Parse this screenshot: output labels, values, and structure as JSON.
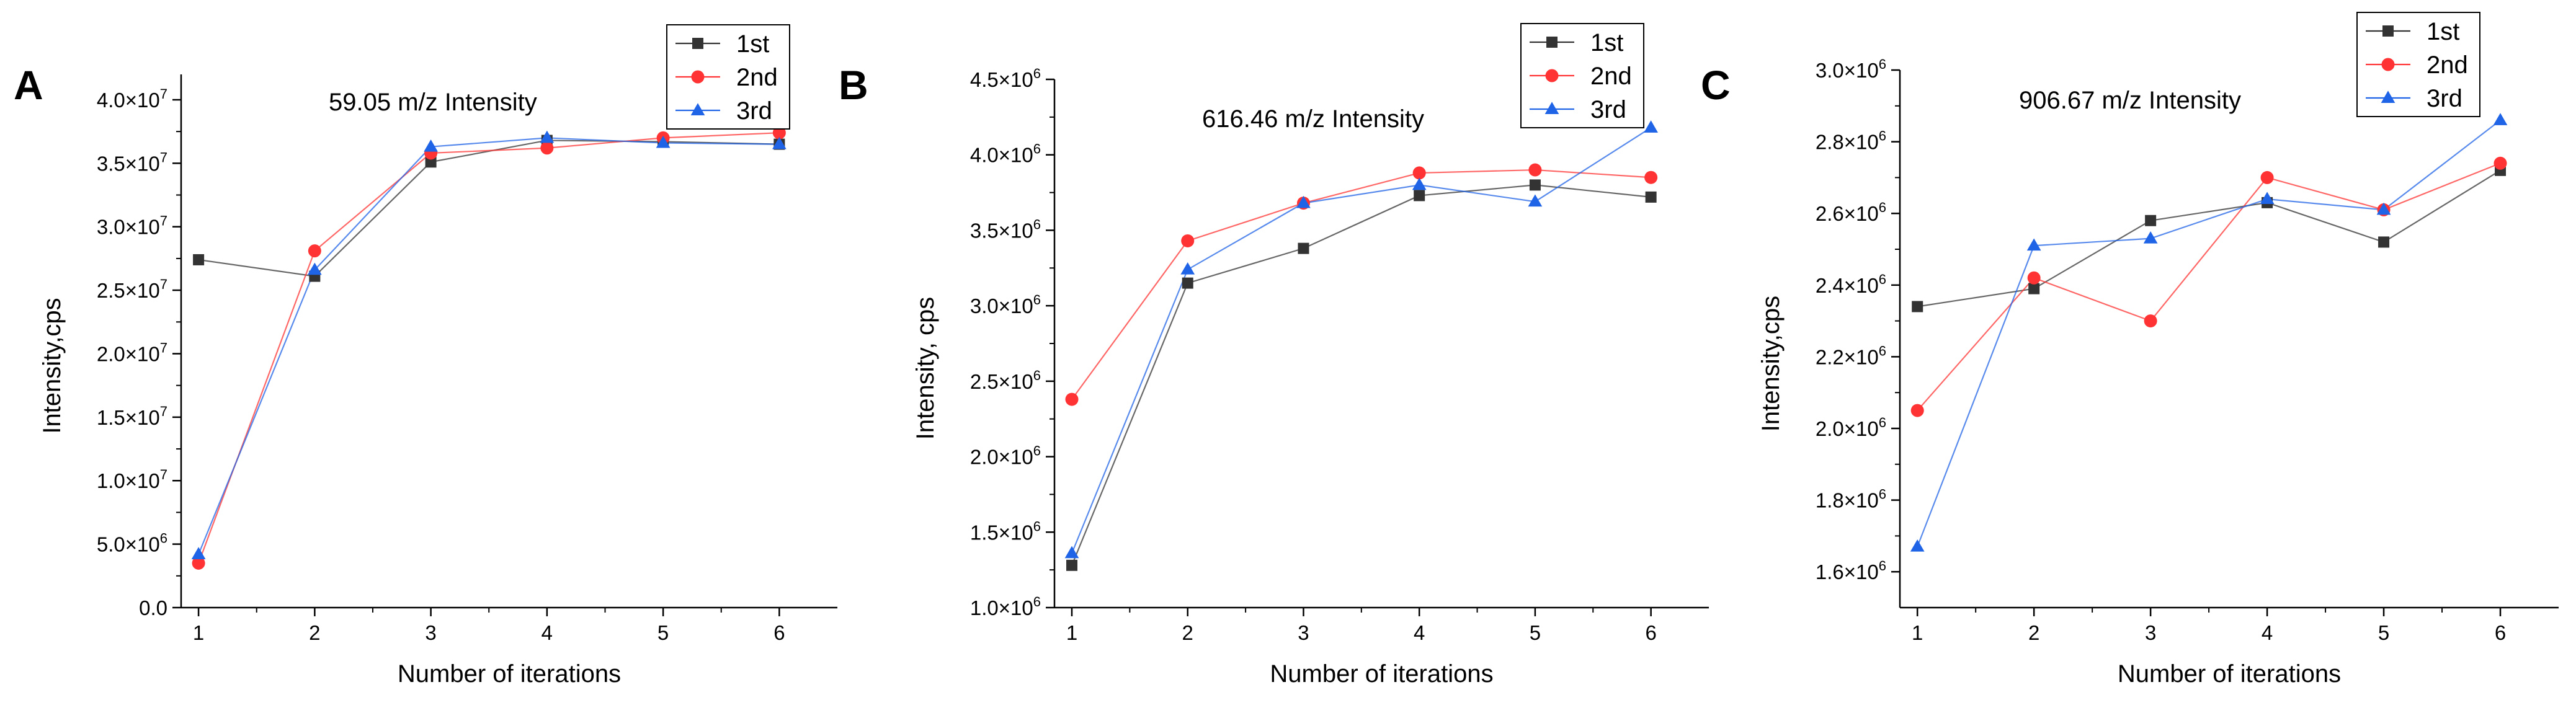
{
  "chart_data": [
    {
      "type": "line",
      "panel": "A",
      "title": "59.05 m/z Intensity",
      "xlabel": "Number of iterations",
      "ylabel": "Intensity,cps",
      "x": [
        1,
        2,
        3,
        4,
        5,
        6
      ],
      "xlim": [
        0.85,
        6.5
      ],
      "ylim": [
        0,
        42000000
      ],
      "yticks": [
        0,
        5000000,
        10000000,
        15000000,
        20000000,
        25000000,
        30000000,
        35000000,
        40000000
      ],
      "ytick_labels": [
        {
          "mant": "0.0",
          "exp": ""
        },
        {
          "mant": "5.0×10",
          "exp": "6"
        },
        {
          "mant": "1.0×10",
          "exp": "7"
        },
        {
          "mant": "1.5×10",
          "exp": "7"
        },
        {
          "mant": "2.0×10",
          "exp": "7"
        },
        {
          "mant": "2.5×10",
          "exp": "7"
        },
        {
          "mant": "3.0×10",
          "exp": "7"
        },
        {
          "mant": "3.5×10",
          "exp": "7"
        },
        {
          "mant": "4.0×10",
          "exp": "7"
        }
      ],
      "legend_position": "top-right",
      "series": [
        {
          "name": "1st",
          "values": [
            27400000,
            26100000,
            35100000,
            36800000,
            36700000,
            36500000
          ]
        },
        {
          "name": "2nd",
          "values": [
            3500000,
            28100000,
            35800000,
            36200000,
            37000000,
            37400000
          ]
        },
        {
          "name": "3rd",
          "values": [
            4200000,
            26600000,
            36300000,
            37000000,
            36600000,
            36500000
          ]
        }
      ]
    },
    {
      "type": "line",
      "panel": "B",
      "title": "616.46 m/z Intensity",
      "xlabel": "Number of iterations",
      "ylabel": "Intensity, cps",
      "x": [
        1,
        2,
        3,
        4,
        5,
        6
      ],
      "xlim": [
        0.85,
        6.5
      ],
      "ylim": [
        1000000,
        4500000
      ],
      "yticks": [
        1000000,
        1500000,
        2000000,
        2500000,
        3000000,
        3500000,
        4000000,
        4500000
      ],
      "ytick_labels": [
        {
          "mant": "1.0×10",
          "exp": "6"
        },
        {
          "mant": "1.5×10",
          "exp": "6"
        },
        {
          "mant": "2.0×10",
          "exp": "6"
        },
        {
          "mant": "2.5×10",
          "exp": "6"
        },
        {
          "mant": "3.0×10",
          "exp": "6"
        },
        {
          "mant": "3.5×10",
          "exp": "6"
        },
        {
          "mant": "4.0×10",
          "exp": "6"
        },
        {
          "mant": "4.5×10",
          "exp": "6"
        }
      ],
      "legend_position": "top-right",
      "series": [
        {
          "name": "1st",
          "values": [
            1280000,
            3150000,
            3380000,
            3730000,
            3800000,
            3720000
          ]
        },
        {
          "name": "2nd",
          "values": [
            2380000,
            3430000,
            3680000,
            3880000,
            3900000,
            3850000
          ]
        },
        {
          "name": "3rd",
          "values": [
            1360000,
            3240000,
            3680000,
            3800000,
            3690000,
            4180000
          ]
        }
      ]
    },
    {
      "type": "line",
      "panel": "C",
      "title": "906.67 m/z Intensity",
      "xlabel": "Number of iterations",
      "ylabel": "Intensity,cps",
      "x": [
        1,
        2,
        3,
        4,
        5,
        6
      ],
      "xlim": [
        0.85,
        6.5
      ],
      "ylim": [
        1500000,
        3000000
      ],
      "yticks": [
        1600000,
        1800000,
        2000000,
        2200000,
        2400000,
        2600000,
        2800000,
        3000000
      ],
      "ytick_labels": [
        {
          "mant": "1.6×10",
          "exp": "6"
        },
        {
          "mant": "1.8×10",
          "exp": "6"
        },
        {
          "mant": "2.0×10",
          "exp": "6"
        },
        {
          "mant": "2.2×10",
          "exp": "6"
        },
        {
          "mant": "2.4×10",
          "exp": "6"
        },
        {
          "mant": "2.6×10",
          "exp": "6"
        },
        {
          "mant": "2.8×10",
          "exp": "6"
        },
        {
          "mant": "3.0×10",
          "exp": "6"
        }
      ],
      "legend_position": "top-right",
      "series": [
        {
          "name": "1st",
          "values": [
            2340000,
            2390000,
            2580000,
            2630000,
            2520000,
            2720000
          ]
        },
        {
          "name": "2nd",
          "values": [
            2050000,
            2420000,
            2300000,
            2700000,
            2610000,
            2740000
          ]
        },
        {
          "name": "3rd",
          "values": [
            1670000,
            2510000,
            2530000,
            2640000,
            2610000,
            2860000
          ]
        }
      ]
    }
  ],
  "series_colors": [
    "#333333",
    "#ff3333",
    "#1f63e6"
  ],
  "series_markers": [
    "square",
    "circle",
    "triangle"
  ]
}
